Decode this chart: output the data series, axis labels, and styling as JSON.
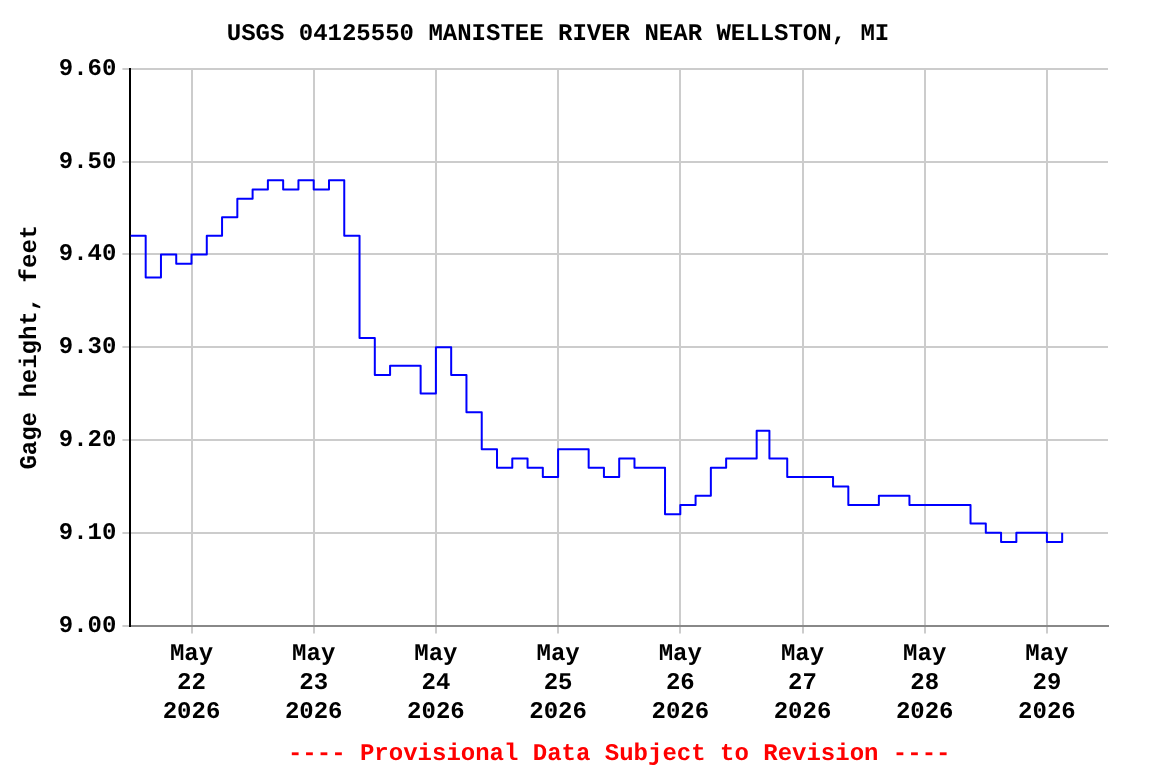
{
  "chart_data": {
    "type": "step",
    "title": "USGS 04125550 MANISTEE RIVER NEAR WELLSTON, MI",
    "ylabel": "Gage height, feet",
    "annotations": [
      "---- Provisional Data Subject to Revision ----"
    ],
    "x": [
      "2026-05-21T12:00",
      "2026-05-21T15:00",
      "2026-05-21T18:00",
      "2026-05-21T21:00",
      "2026-05-22T00:00",
      "2026-05-22T03:00",
      "2026-05-22T06:00",
      "2026-05-22T09:00",
      "2026-05-22T12:00",
      "2026-05-22T15:00",
      "2026-05-22T18:00",
      "2026-05-22T21:00",
      "2026-05-23T00:00",
      "2026-05-23T03:00",
      "2026-05-23T06:00",
      "2026-05-23T09:00",
      "2026-05-23T12:00",
      "2026-05-23T15:00",
      "2026-05-23T18:00",
      "2026-05-23T21:00",
      "2026-05-24T00:00",
      "2026-05-24T03:00",
      "2026-05-24T06:00",
      "2026-05-24T09:00",
      "2026-05-24T12:00",
      "2026-05-24T15:00",
      "2026-05-24T18:00",
      "2026-05-24T21:00",
      "2026-05-25T00:00",
      "2026-05-25T03:00",
      "2026-05-25T06:00",
      "2026-05-25T09:00",
      "2026-05-25T12:00",
      "2026-05-25T15:00",
      "2026-05-25T18:00",
      "2026-05-25T21:00",
      "2026-05-26T00:00",
      "2026-05-26T03:00",
      "2026-05-26T06:00",
      "2026-05-26T09:00",
      "2026-05-26T12:00",
      "2026-05-26T15:00",
      "2026-05-26T17:30",
      "2026-05-26T18:00",
      "2026-05-26T21:00",
      "2026-05-27T00:00",
      "2026-05-27T03:00",
      "2026-05-27T06:00",
      "2026-05-27T09:00",
      "2026-05-27T12:00",
      "2026-05-27T15:00",
      "2026-05-27T18:00",
      "2026-05-27T21:00",
      "2026-05-28T00:00",
      "2026-05-28T03:00",
      "2026-05-28T06:00",
      "2026-05-28T09:00",
      "2026-05-28T12:00",
      "2026-05-28T15:00",
      "2026-05-28T18:00",
      "2026-05-28T21:00",
      "2026-05-29T00:00",
      "2026-05-29T03:00"
    ],
    "series": [
      {
        "color": "#0000ff",
        "values": [
          9.42,
          9.375,
          9.4,
          9.39,
          9.4,
          9.42,
          9.44,
          9.46,
          9.47,
          9.48,
          9.47,
          9.48,
          9.47,
          9.48,
          9.42,
          9.31,
          9.27,
          9.28,
          9.28,
          9.25,
          9.3,
          9.27,
          9.23,
          9.19,
          9.17,
          9.18,
          9.17,
          9.16,
          9.19,
          9.19,
          9.17,
          9.16,
          9.18,
          9.17,
          9.17,
          9.12,
          9.13,
          9.14,
          9.17,
          9.18,
          9.18,
          9.21,
          9.18,
          9.18,
          9.16,
          9.16,
          9.16,
          9.15,
          9.13,
          9.13,
          9.14,
          9.14,
          9.13,
          9.13,
          9.13,
          9.13,
          9.11,
          9.1,
          9.09,
          9.1,
          9.1,
          9.09,
          9.1
        ]
      }
    ],
    "xlim": [
      "2026-05-21T12:00",
      "2026-05-29T12:00"
    ],
    "xticks": [
      {
        "value": "2026-05-22",
        "label": "May 22 2026"
      },
      {
        "value": "2026-05-23",
        "label": "May 23 2026"
      },
      {
        "value": "2026-05-24",
        "label": "May 24 2026"
      },
      {
        "value": "2026-05-25",
        "label": "May 25 2026"
      },
      {
        "value": "2026-05-26",
        "label": "May 26 2026"
      },
      {
        "value": "2026-05-27",
        "label": "May 27 2026"
      },
      {
        "value": "2026-05-28",
        "label": "May 28 2026"
      },
      {
        "value": "2026-05-29",
        "label": "May 29 2026"
      }
    ],
    "ylim": [
      9.0,
      9.6
    ],
    "yticks": [
      {
        "value": 9.0,
        "label": "9.00"
      },
      {
        "value": 9.1,
        "label": "9.10"
      },
      {
        "value": 9.2,
        "label": "9.20"
      },
      {
        "value": 9.3,
        "label": "9.30"
      },
      {
        "value": 9.4,
        "label": "9.40"
      },
      {
        "value": 9.5,
        "label": "9.50"
      },
      {
        "value": 9.6,
        "label": "9.60"
      }
    ],
    "grid": true
  }
}
